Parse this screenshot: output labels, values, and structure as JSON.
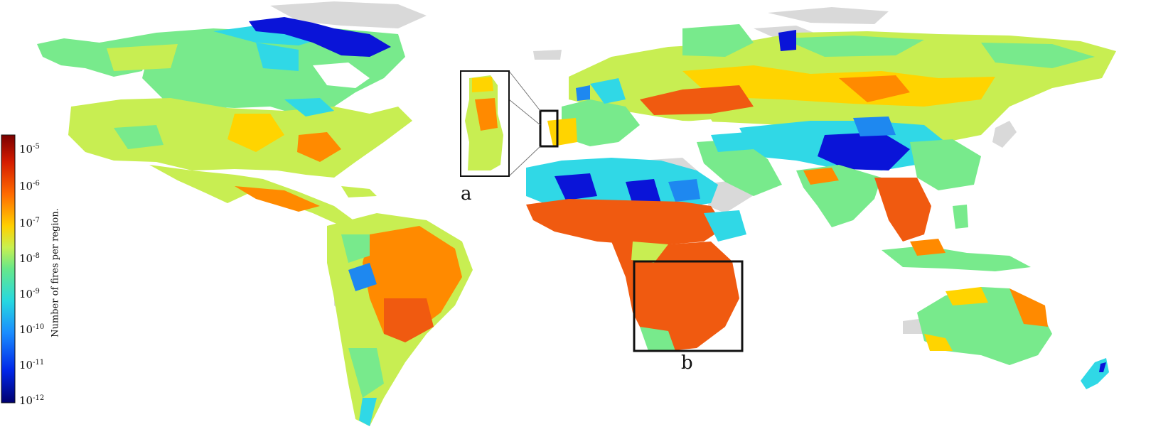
{
  "colorbar": {
    "label": "Number of fires per region.",
    "ticks": [
      {
        "base": "10",
        "exp": "-5"
      },
      {
        "base": "10",
        "exp": "-6"
      },
      {
        "base": "10",
        "exp": "-7"
      },
      {
        "base": "10",
        "exp": "-8"
      },
      {
        "base": "10",
        "exp": "-9"
      },
      {
        "base": "10",
        "exp": "-10"
      },
      {
        "base": "10",
        "exp": "-11"
      },
      {
        "base": "10",
        "exp": "-12"
      }
    ],
    "colors": [
      "#7a0000",
      "#d41c00",
      "#ff6a00",
      "#ffd000",
      "#c8f050",
      "#66e88a",
      "#26d8e0",
      "#1a8cff",
      "#0026e8",
      "#00006e"
    ]
  },
  "insets": {
    "a": {
      "letter": "a"
    },
    "b": {
      "letter": "b"
    }
  },
  "palette": {
    "no_data": "#d9d9d9",
    "very_low": "#0a14d8",
    "low": "#1e88f0",
    "cyan": "#30d8e6",
    "green": "#78ea8c",
    "yellow_green": "#c8ee52",
    "yellow": "#ffd400",
    "orange": "#ff8a00",
    "red_orange": "#f05a10"
  }
}
